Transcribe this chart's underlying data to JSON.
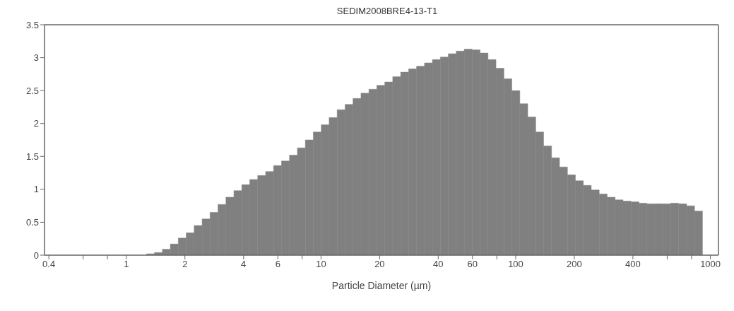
{
  "chart_data": {
    "type": "histogram",
    "title": "SEDIM2008BRE4-13-T1",
    "xlabel": "Particle Diameter (µm)",
    "color": "#808080",
    "log": "x",
    "grid": false,
    "bins": [
      1.27,
      1.395,
      1.532,
      1.683,
      1.849,
      2.031,
      2.231,
      2.451,
      2.692,
      2.957,
      3.248,
      3.568,
      3.919,
      4.305,
      4.729,
      5.195,
      5.706,
      6.268,
      6.886,
      7.564,
      8.309,
      9.127,
      10.03,
      11.01,
      12.1,
      13.29,
      14.6,
      16.04,
      17.62,
      19.35,
      21.26,
      23.35,
      25.65,
      28.18,
      30.95,
      34.0,
      37.35,
      41.03,
      45.07,
      49.51,
      54.39,
      59.74,
      65.63,
      72.09,
      79.19,
      86.99,
      95.55,
      105.0,
      115.3,
      126.7,
      139.1,
      152.8,
      167.9,
      184.4,
      202.6,
      222.5,
      244.4,
      268.5,
      294.9,
      324.0,
      355.9,
      391.0,
      429.5,
      471.8,
      518.3,
      569.3,
      625.4,
      687.0,
      754.7,
      829.0,
      910.6
    ],
    "values": [
      0.02,
      0.04,
      0.09,
      0.17,
      0.26,
      0.34,
      0.45,
      0.55,
      0.65,
      0.77,
      0.88,
      0.98,
      1.07,
      1.15,
      1.21,
      1.27,
      1.36,
      1.43,
      1.52,
      1.63,
      1.75,
      1.87,
      1.98,
      2.09,
      2.21,
      2.29,
      2.38,
      2.46,
      2.52,
      2.58,
      2.63,
      2.71,
      2.78,
      2.83,
      2.87,
      2.92,
      2.97,
      3.01,
      3.06,
      3.1,
      3.13,
      3.12,
      3.07,
      2.97,
      2.84,
      2.68,
      2.5,
      2.3,
      2.1,
      1.87,
      1.66,
      1.48,
      1.34,
      1.22,
      1.13,
      1.06,
      0.99,
      0.93,
      0.88,
      0.84,
      0.82,
      0.81,
      0.79,
      0.78,
      0.78,
      0.78,
      0.79,
      0.78,
      0.75,
      0.67
    ],
    "xlim": [
      0.38,
      1100
    ],
    "xticks": [
      0.4,
      {
        "value": 0.6,
        "label": null
      },
      {
        "value": 0.8,
        "label": null
      },
      1,
      2,
      4,
      6,
      {
        "value": 8,
        "label": null
      },
      10,
      20,
      40,
      60,
      {
        "value": 80,
        "label": null
      },
      100,
      200,
      400,
      {
        "value": 600,
        "label": null
      },
      {
        "value": 800,
        "label": null
      },
      1000
    ],
    "ylim": [
      0,
      3.5
    ],
    "yticks": [
      0,
      0.5,
      1,
      1.5,
      2,
      2.5,
      3,
      3.5
    ]
  }
}
